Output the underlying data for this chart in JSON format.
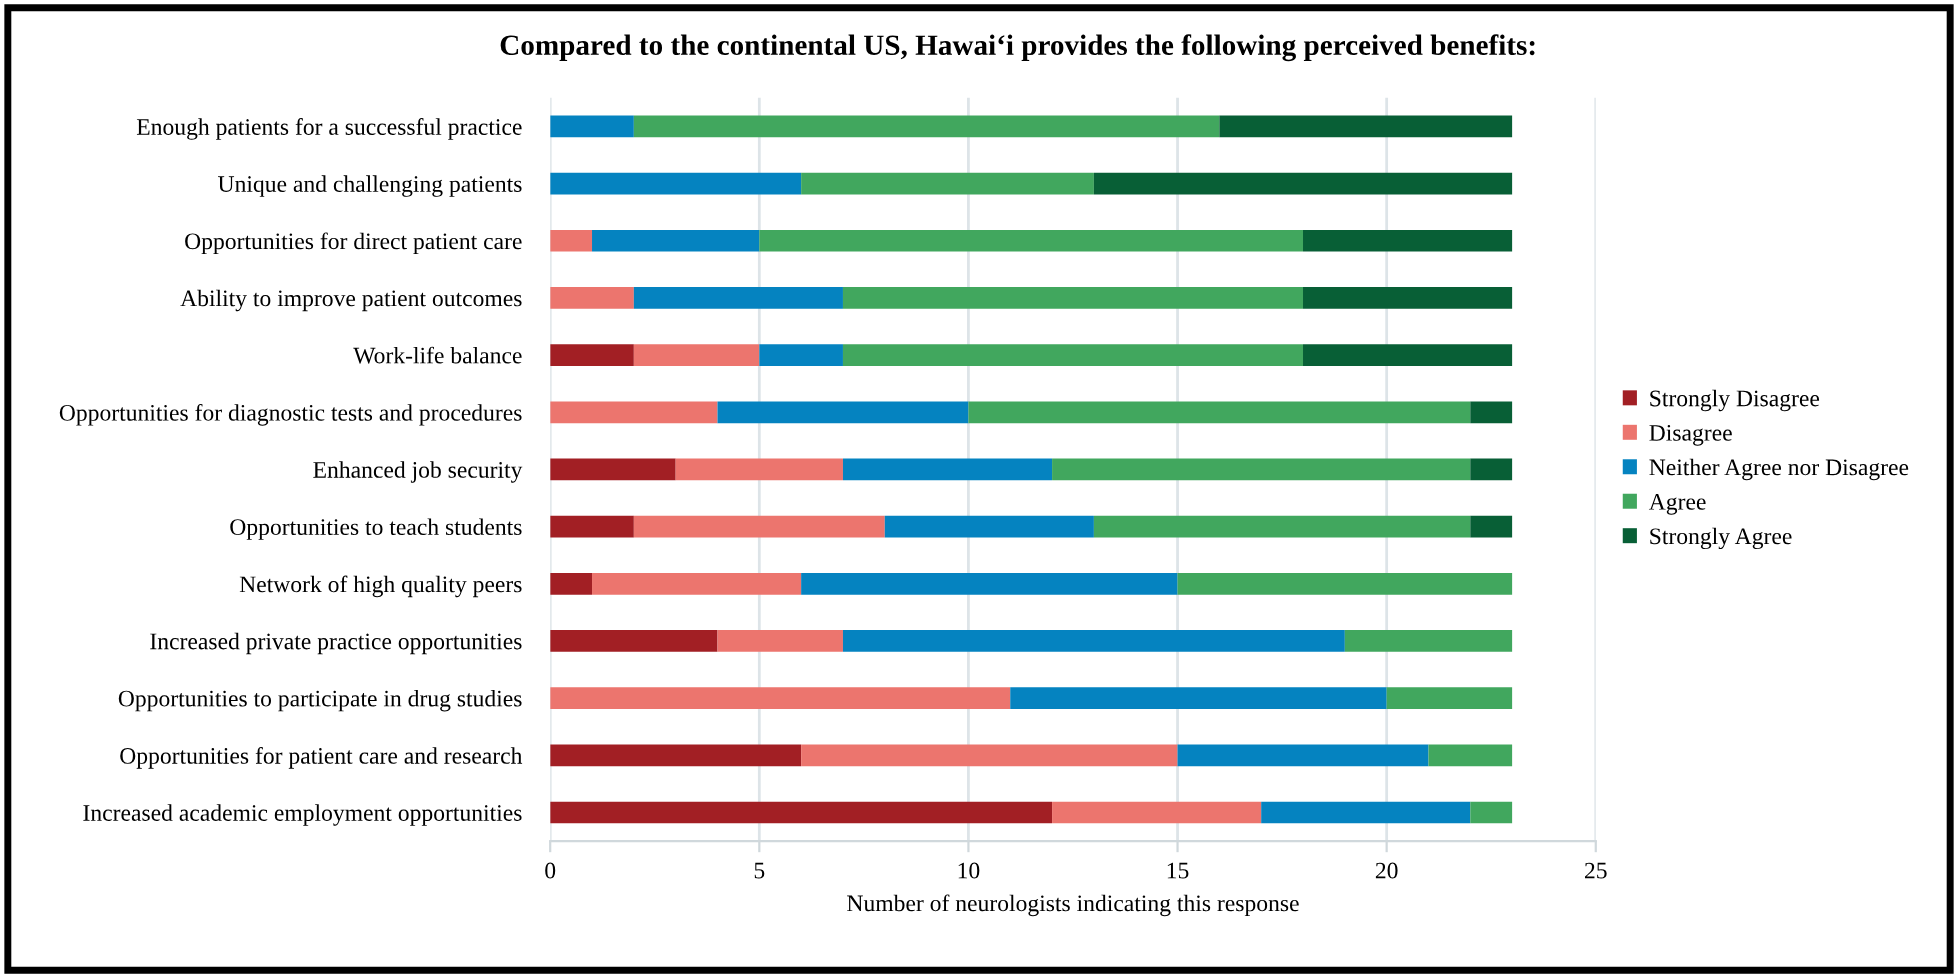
{
  "chart_data": {
    "type": "bar",
    "orientation": "horizontal",
    "stacked": true,
    "title": "Compared to the continental US, Hawai‘i provides the following perceived benefits:",
    "xlabel": "Number of neurologists indicating this response",
    "categories": [
      "Enough patients for a successful practice",
      "Unique and challenging patients",
      "Opportunities for direct patient care",
      "Ability to improve patient outcomes",
      "Work-life balance",
      "Opportunities for diagnostic tests and procedures",
      "Enhanced job security",
      "Opportunities to teach students",
      "Network of high quality peers",
      "Increased private practice opportunities",
      "Opportunities to participate in drug studies",
      "Opportunities for patient care and research",
      "Increased academic employment opportunities"
    ],
    "series": [
      {
        "name": "Strongly Disagree",
        "color": "#a21f24",
        "values": [
          0,
          0,
          0,
          0,
          2,
          0,
          3,
          2,
          1,
          4,
          0,
          6,
          12
        ]
      },
      {
        "name": "Disagree",
        "color": "#ec756e",
        "values": [
          0,
          0,
          1,
          2,
          3,
          4,
          4,
          6,
          5,
          3,
          11,
          9,
          5
        ]
      },
      {
        "name": "Neither Agree nor Disagree",
        "color": "#0583c0",
        "values": [
          2,
          6,
          4,
          5,
          2,
          6,
          5,
          5,
          9,
          12,
          9,
          6,
          5
        ]
      },
      {
        "name": "Agree",
        "color": "#41a75e",
        "values": [
          14,
          7,
          13,
          11,
          11,
          12,
          10,
          9,
          8,
          4,
          3,
          2,
          1
        ]
      },
      {
        "name": "Strongly Agree",
        "color": "#085f36",
        "values": [
          7,
          10,
          5,
          5,
          5,
          1,
          1,
          1,
          0,
          0,
          0,
          0,
          0
        ]
      }
    ],
    "xlim": [
      0,
      25
    ],
    "xticks": [
      0,
      5,
      10,
      15,
      20,
      25
    ],
    "grid": "x",
    "legend": "right"
  }
}
